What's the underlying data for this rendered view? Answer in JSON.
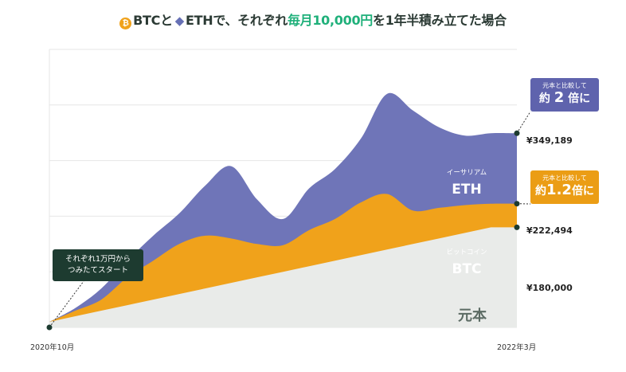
{
  "title": {
    "btc": "BTC",
    "to": "と",
    "eth": "ETH",
    "mid": "で、それぞれ",
    "highlight": "毎月10,000円",
    "end": "を1年半積み立てた場合"
  },
  "annotations": {
    "start_line1": "それぞれ1万円から",
    "start_line2": "つみたてスタート",
    "eth_compare": "元本と比較して",
    "eth_times_pre": "約",
    "eth_times_num": "2",
    "eth_times_post": "倍に",
    "btc_compare": "元本と比較して",
    "btc_times_pre": "約",
    "btc_times_num": "1.2",
    "btc_times_post": "倍に"
  },
  "end_values": {
    "eth": "¥349,189",
    "btc": "¥222,494",
    "principal": "¥180,000"
  },
  "colors": {
    "eth": "#6f75b8",
    "btc": "#f0a21b",
    "principal": "#e9ebe9",
    "highlight": "#1fb07a"
  },
  "chart_data": {
    "type": "area",
    "title": "BTCとETHで、それぞれ毎月10,000円を1年半積み立てた場合",
    "x_start_label": "2020年10月",
    "x_end_label": "2022年3月",
    "x": [
      0,
      1,
      2,
      3,
      4,
      5,
      6,
      7,
      8,
      9,
      10,
      11,
      12,
      13,
      14,
      15,
      16,
      17,
      18
    ],
    "ylim": [
      0,
      500000
    ],
    "grid": true,
    "series": [
      {
        "name": "元本",
        "label_small": "",
        "values": [
          10000,
          20000,
          30000,
          40000,
          50000,
          60000,
          70000,
          80000,
          90000,
          100000,
          110000,
          120000,
          130000,
          140000,
          150000,
          160000,
          170000,
          180000,
          180000
        ]
      },
      {
        "name": "BTC",
        "label_small": "ビットコイン",
        "values": [
          10000,
          30000,
          50000,
          90000,
          120000,
          150000,
          165000,
          160000,
          150000,
          148000,
          175000,
          195000,
          225000,
          240000,
          210000,
          215000,
          220000,
          222494,
          222494
        ]
      },
      {
        "name": "ETH",
        "label_small": "イーサリアム",
        "values": [
          10000,
          35000,
          70000,
          120000,
          165000,
          205000,
          255000,
          290000,
          230000,
          195000,
          250000,
          285000,
          340000,
          420000,
          390000,
          360000,
          345000,
          349189,
          349189
        ]
      }
    ]
  }
}
